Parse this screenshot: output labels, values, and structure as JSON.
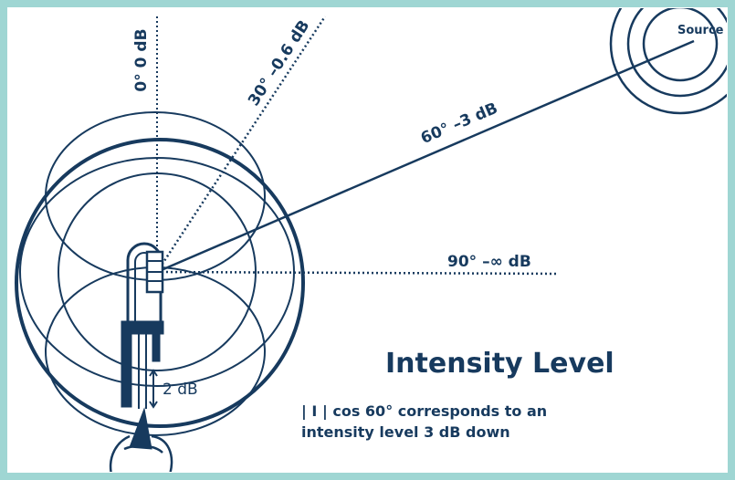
{
  "labels": {
    "zero": "0° 0 dB",
    "thirty": "30° –0.6 dB",
    "sixty": "60° –3 dB",
    "ninety": "90° –∞ dB",
    "source": "Source",
    "gap": "2 dB"
  },
  "caption": {
    "title": "Intensity Level",
    "lines": [
      "| I | cos 60° corresponds to an",
      "intensity level 3 dB down"
    ]
  }
}
